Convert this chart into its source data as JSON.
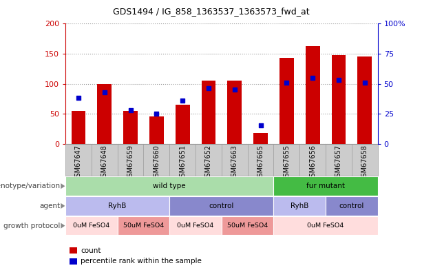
{
  "title": "GDS1494 / IG_858_1363537_1363573_fwd_at",
  "samples": [
    "GSM67647",
    "GSM67648",
    "GSM67659",
    "GSM67660",
    "GSM67651",
    "GSM67652",
    "GSM67663",
    "GSM67665",
    "GSM67655",
    "GSM67656",
    "GSM67657",
    "GSM67658"
  ],
  "bar_values": [
    55,
    100,
    55,
    46,
    65,
    105,
    105,
    18,
    143,
    163,
    148,
    145
  ],
  "dot_values": [
    38,
    43,
    28,
    25,
    36,
    46,
    45,
    15,
    51,
    55,
    53,
    51
  ],
  "bar_color": "#cc0000",
  "dot_color": "#0000cc",
  "ylim_left": [
    0,
    200
  ],
  "ylim_right": [
    0,
    100
  ],
  "yticks_left": [
    0,
    50,
    100,
    150,
    200
  ],
  "yticks_right": [
    0,
    25,
    50,
    75,
    100
  ],
  "ytick_labels_right": [
    "0",
    "25",
    "50",
    "75",
    "100%"
  ],
  "left_yaxis_color": "#cc0000",
  "right_yaxis_color": "#0000cc",
  "row_labels": [
    "genotype/variation",
    "agent",
    "growth protocol"
  ],
  "genotype_groups": [
    {
      "label": "wild type",
      "start": 0,
      "end": 8,
      "color": "#aaddaa"
    },
    {
      "label": "fur mutant",
      "start": 8,
      "end": 12,
      "color": "#44bb44"
    }
  ],
  "agent_groups": [
    {
      "label": "RyhB",
      "start": 0,
      "end": 4,
      "color": "#bbbbee"
    },
    {
      "label": "control",
      "start": 4,
      "end": 8,
      "color": "#8888cc"
    },
    {
      "label": "RyhB",
      "start": 8,
      "end": 10,
      "color": "#bbbbee"
    },
    {
      "label": "control",
      "start": 10,
      "end": 12,
      "color": "#8888cc"
    }
  ],
  "growth_groups": [
    {
      "label": "0uM FeSO4",
      "start": 0,
      "end": 2,
      "color": "#ffdddd"
    },
    {
      "label": "50uM FeSO4",
      "start": 2,
      "end": 4,
      "color": "#ee9999"
    },
    {
      "label": "0uM FeSO4",
      "start": 4,
      "end": 6,
      "color": "#ffdddd"
    },
    {
      "label": "50uM FeSO4",
      "start": 6,
      "end": 8,
      "color": "#ee9999"
    },
    {
      "label": "0uM FeSO4",
      "start": 8,
      "end": 12,
      "color": "#ffdddd"
    }
  ],
  "legend_items": [
    {
      "label": "count",
      "color": "#cc0000"
    },
    {
      "label": "percentile rank within the sample",
      "color": "#0000cc"
    }
  ],
  "bar_width": 0.55,
  "xaxis_bg": "#cccccc",
  "plot_bg": "#ffffff",
  "xlim": [
    -0.5,
    11.5
  ]
}
